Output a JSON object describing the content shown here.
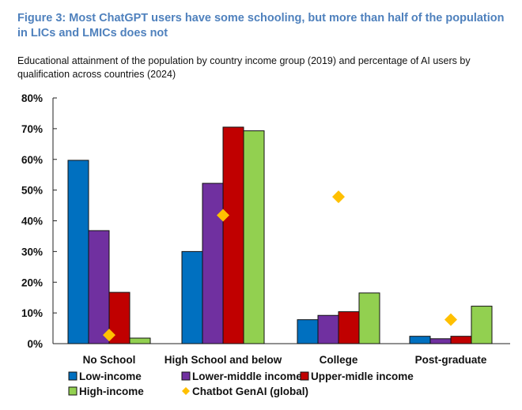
{
  "chart_data": {
    "type": "bar",
    "title": "Figure 3: Most ChatGPT users have some schooling, but more than half of the population in LICs and LMICs does not",
    "subtitle": "Educational attainment of the population by country income group (2019) and percentage of AI users by qualification across countries (2024)",
    "categories": [
      "No School",
      "High School and below",
      "College",
      "Post-graduate"
    ],
    "ylim": [
      0,
      80
    ],
    "yticks": [
      0,
      10,
      20,
      30,
      40,
      50,
      60,
      70,
      80
    ],
    "ytick_labels": [
      "0%",
      "10%",
      "20%",
      "30%",
      "40%",
      "50%",
      "60%",
      "70%",
      "80%"
    ],
    "grid": false,
    "legend_placement": "bottom",
    "series": [
      {
        "name": "Low-income",
        "kind": "bar",
        "color": "#0070c0",
        "values": [
          59.7,
          30,
          7.8,
          2.4
        ]
      },
      {
        "name": "Lower-middle income",
        "kind": "bar",
        "color": "#7030a0",
        "values": [
          36.8,
          52.2,
          9.2,
          1.6
        ]
      },
      {
        "name": "Upper-midle income",
        "kind": "bar",
        "color": "#c00000",
        "values": [
          16.7,
          70.5,
          10.4,
          2.4
        ]
      },
      {
        "name": "High-income",
        "kind": "bar",
        "color": "#92d050",
        "values": [
          1.8,
          69.3,
          16.5,
          12.2
        ]
      },
      {
        "name": "Chatbot GenAI (global)",
        "kind": "marker",
        "color": "#ffc000",
        "values": [
          2.8,
          41.8,
          47.8,
          7.8
        ]
      }
    ]
  }
}
